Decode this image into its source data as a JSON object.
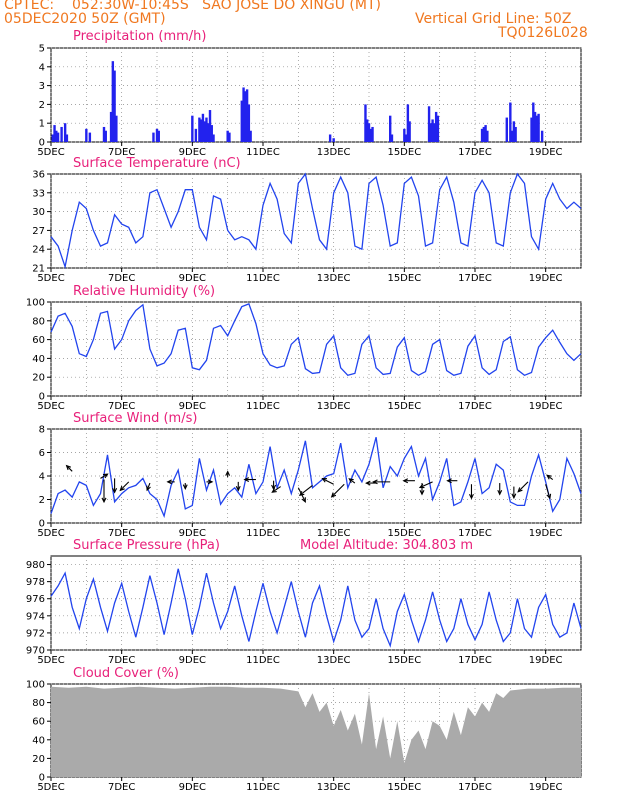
{
  "header": {
    "source": "CPTEC:",
    "location": "052:30W-10:45S   SAO JOSE DO XINGU (MT)",
    "init": "05DEC2020 50Z (GMT)",
    "gridline": "Vertical Grid Line: 50Z",
    "code": "TQ0126L028"
  },
  "x_labels": [
    "5DEC",
    "7DEC",
    "9DEC",
    "11DEC",
    "13DEC",
    "15DEC",
    "17DEC",
    "19DEC"
  ],
  "x_label_days": [
    0,
    2,
    4,
    6,
    8,
    10,
    12,
    14
  ],
  "chart_data": [
    {
      "type": "bar",
      "title": "Precipitation (mm/h)",
      "ylim": [
        0,
        5
      ],
      "yticks": [
        0,
        1,
        2,
        3,
        4,
        5
      ],
      "color": "#2222ee",
      "values": [
        [
          0.05,
          0.4
        ],
        [
          0.1,
          0.9
        ],
        [
          0.15,
          0.6
        ],
        [
          0.2,
          0.5
        ],
        [
          0.3,
          0.8
        ],
        [
          0.4,
          1.0
        ],
        [
          0.45,
          0.4
        ],
        [
          1.0,
          0.7
        ],
        [
          1.1,
          0.5
        ],
        [
          1.5,
          0.8
        ],
        [
          1.55,
          0.6
        ],
        [
          1.7,
          1.6
        ],
        [
          1.75,
          4.3
        ],
        [
          1.8,
          3.8
        ],
        [
          1.85,
          1.4
        ],
        [
          2.9,
          0.5
        ],
        [
          3.0,
          0.7
        ],
        [
          3.05,
          0.6
        ],
        [
          4.0,
          1.4
        ],
        [
          4.1,
          0.7
        ],
        [
          4.2,
          1.3
        ],
        [
          4.25,
          1.2
        ],
        [
          4.3,
          1.5
        ],
        [
          4.35,
          1.1
        ],
        [
          4.4,
          1.3
        ],
        [
          4.45,
          1.0
        ],
        [
          4.5,
          1.7
        ],
        [
          4.55,
          0.9
        ],
        [
          4.6,
          0.4
        ],
        [
          5.0,
          0.6
        ],
        [
          5.05,
          0.5
        ],
        [
          5.4,
          2.2
        ],
        [
          5.45,
          2.9
        ],
        [
          5.5,
          2.7
        ],
        [
          5.55,
          2.8
        ],
        [
          5.6,
          2.0
        ],
        [
          5.65,
          0.6
        ],
        [
          7.9,
          0.4
        ],
        [
          8.0,
          0.2
        ],
        [
          8.9,
          2.0
        ],
        [
          8.95,
          1.2
        ],
        [
          9.0,
          1.0
        ],
        [
          9.05,
          0.7
        ],
        [
          9.1,
          0.8
        ],
        [
          9.6,
          1.4
        ],
        [
          9.65,
          0.4
        ],
        [
          10.0,
          0.7
        ],
        [
          10.05,
          0.4
        ],
        [
          10.1,
          2.0
        ],
        [
          10.15,
          1.1
        ],
        [
          10.7,
          1.9
        ],
        [
          10.75,
          1.0
        ],
        [
          10.8,
          1.2
        ],
        [
          10.85,
          1.0
        ],
        [
          10.9,
          1.6
        ],
        [
          10.95,
          1.4
        ],
        [
          12.2,
          0.7
        ],
        [
          12.25,
          0.8
        ],
        [
          12.3,
          0.9
        ],
        [
          12.35,
          0.6
        ],
        [
          12.9,
          1.3
        ],
        [
          13.0,
          2.1
        ],
        [
          13.05,
          0.6
        ],
        [
          13.1,
          1.1
        ],
        [
          13.15,
          0.8
        ],
        [
          13.6,
          1.3
        ],
        [
          13.65,
          2.1
        ],
        [
          13.7,
          1.6
        ],
        [
          13.75,
          1.4
        ],
        [
          13.8,
          1.5
        ],
        [
          13.9,
          0.6
        ]
      ]
    },
    {
      "type": "line",
      "title": "Surface Temperature (nC)",
      "ylim": [
        21,
        36
      ],
      "yticks": [
        21,
        24,
        27,
        30,
        33,
        36
      ],
      "color": "#2244ee",
      "x": [
        0,
        0.2,
        0.4,
        0.6,
        0.8,
        1.0,
        1.2,
        1.4,
        1.6,
        1.8,
        2.0,
        2.2,
        2.4,
        2.6,
        2.8,
        3.0,
        3.2,
        3.4,
        3.6,
        3.8,
        4.0,
        4.2,
        4.4,
        4.6,
        4.8,
        5.0,
        5.2,
        5.4,
        5.6,
        5.8,
        6.0,
        6.2,
        6.4,
        6.6,
        6.8,
        7.0,
        7.2,
        7.4,
        7.6,
        7.8,
        8.0,
        8.2,
        8.4,
        8.6,
        8.8,
        9.0,
        9.2,
        9.4,
        9.6,
        9.8,
        10.0,
        10.2,
        10.4,
        10.6,
        10.8,
        11.0,
        11.2,
        11.4,
        11.6,
        11.8,
        12.0,
        12.2,
        12.4,
        12.6,
        12.8,
        13.0,
        13.2,
        13.4,
        13.6,
        13.8,
        14.0,
        14.2,
        14.4,
        14.6,
        14.8,
        15.0
      ],
      "y": [
        26.0,
        24.5,
        21.2,
        27.0,
        31.5,
        30.5,
        27.0,
        24.5,
        25.0,
        29.5,
        28.0,
        27.5,
        25.0,
        26.0,
        33.0,
        33.5,
        30.5,
        27.5,
        30.0,
        33.5,
        33.5,
        27.5,
        25.5,
        32.5,
        32.0,
        27.0,
        25.5,
        26.0,
        25.5,
        24.0,
        31.0,
        34.5,
        32.0,
        26.5,
        25.0,
        34.5,
        36.0,
        30.5,
        25.5,
        24.0,
        33.0,
        35.5,
        33.0,
        24.5,
        24.0,
        34.5,
        35.5,
        31.0,
        24.5,
        25.0,
        34.5,
        35.5,
        32.5,
        24.5,
        25.0,
        33.5,
        35.5,
        31.5,
        25.0,
        24.5,
        33.0,
        35.0,
        33.0,
        25.0,
        24.5,
        33.0,
        36.0,
        34.5,
        26.0,
        24.0,
        32.0,
        34.5,
        32.0,
        30.5,
        31.5,
        30.5
      ]
    },
    {
      "type": "line",
      "title": "Relative Humidity (%)",
      "ylim": [
        0,
        100
      ],
      "yticks": [
        0,
        20,
        40,
        60,
        80,
        100
      ],
      "color": "#2244ee",
      "x": [
        0,
        0.2,
        0.4,
        0.6,
        0.8,
        1.0,
        1.2,
        1.4,
        1.6,
        1.8,
        2.0,
        2.2,
        2.4,
        2.6,
        2.8,
        3.0,
        3.2,
        3.4,
        3.6,
        3.8,
        4.0,
        4.2,
        4.4,
        4.6,
        4.8,
        5.0,
        5.2,
        5.4,
        5.6,
        5.8,
        6.0,
        6.2,
        6.4,
        6.6,
        6.8,
        7.0,
        7.2,
        7.4,
        7.6,
        7.8,
        8.0,
        8.2,
        8.4,
        8.6,
        8.8,
        9.0,
        9.2,
        9.4,
        9.6,
        9.8,
        10.0,
        10.2,
        10.4,
        10.6,
        10.8,
        11.0,
        11.2,
        11.4,
        11.6,
        11.8,
        12.0,
        12.2,
        12.4,
        12.6,
        12.8,
        13.0,
        13.2,
        13.4,
        13.6,
        13.8,
        14.0,
        14.2,
        14.4,
        14.6,
        14.8,
        15.0
      ],
      "y": [
        68,
        85,
        88,
        74,
        45,
        42,
        60,
        88,
        90,
        50,
        60,
        80,
        91,
        97,
        50,
        32,
        35,
        45,
        70,
        72,
        30,
        28,
        38,
        72,
        75,
        64,
        80,
        95,
        98,
        77,
        45,
        33,
        30,
        32,
        55,
        62,
        29,
        24,
        25,
        55,
        64,
        30,
        22,
        24,
        55,
        64,
        30,
        23,
        24,
        52,
        62,
        27,
        22,
        26,
        55,
        60,
        27,
        22,
        24,
        53,
        64,
        30,
        23,
        28,
        58,
        63,
        28,
        22,
        25,
        52,
        62,
        70,
        57,
        45,
        38,
        45
      ]
    },
    {
      "type": "line",
      "title": "Surface Wind (m/s)",
      "ylim": [
        0,
        8
      ],
      "yticks": [
        0,
        2,
        4,
        6,
        8
      ],
      "color": "#2244ee",
      "x": [
        0,
        0.2,
        0.4,
        0.6,
        0.8,
        1.0,
        1.2,
        1.4,
        1.6,
        1.8,
        2.0,
        2.2,
        2.4,
        2.6,
        2.8,
        3.0,
        3.2,
        3.4,
        3.6,
        3.8,
        4.0,
        4.2,
        4.4,
        4.6,
        4.8,
        5.0,
        5.2,
        5.4,
        5.6,
        5.8,
        6.0,
        6.2,
        6.4,
        6.6,
        6.8,
        7.0,
        7.2,
        7.4,
        7.6,
        7.8,
        8.0,
        8.2,
        8.4,
        8.6,
        8.8,
        9.0,
        9.2,
        9.4,
        9.6,
        9.8,
        10.0,
        10.2,
        10.4,
        10.6,
        10.8,
        11.0,
        11.2,
        11.4,
        11.6,
        11.8,
        12.0,
        12.2,
        12.4,
        12.6,
        12.8,
        13.0,
        13.2,
        13.4,
        13.6,
        13.8,
        14.0,
        14.2,
        14.4,
        14.6,
        14.8,
        15.0
      ],
      "y": [
        0.8,
        2.5,
        2.8,
        2.2,
        3.5,
        3.2,
        1.5,
        2.5,
        5.8,
        1.8,
        2.5,
        3.0,
        3.2,
        3.8,
        2.5,
        2.0,
        0.6,
        3.2,
        4.5,
        1.2,
        1.5,
        5.5,
        2.8,
        4.5,
        1.6,
        2.5,
        3.0,
        2.2,
        5.0,
        2.5,
        3.5,
        6.5,
        3.0,
        4.5,
        2.5,
        4.5,
        7.0,
        3.0,
        3.5,
        4.0,
        4.2,
        6.8,
        3.0,
        4.5,
        3.5,
        5.0,
        7.3,
        3.0,
        4.8,
        4.0,
        5.5,
        6.5,
        4.0,
        5.5,
        2.0,
        3.5,
        5.5,
        1.5,
        1.8,
        3.5,
        5.5,
        2.5,
        3.0,
        5.0,
        4.5,
        1.8,
        1.5,
        1.5,
        4.0,
        5.8,
        3.5,
        1.0,
        2.0,
        5.5,
        4.2,
        2.5
      ],
      "vectors": [
        [
          0.6,
          4.4,
          -0.4,
          0.4
        ],
        [
          1.4,
          3.8,
          0.5,
          0.3
        ],
        [
          1.5,
          3.7,
          0.0,
          -1.6
        ],
        [
          1.8,
          3.8,
          0.0,
          -1.0
        ],
        [
          2.2,
          3.5,
          -0.6,
          -0.6
        ],
        [
          2.8,
          3.4,
          -0.2,
          -0.5
        ],
        [
          3.5,
          3.5,
          -0.5,
          0.0
        ],
        [
          3.8,
          3.4,
          0.0,
          -0.4
        ],
        [
          4.4,
          3.5,
          0.4,
          0.0
        ],
        [
          5.0,
          3.9,
          0.0,
          0.4
        ],
        [
          5.3,
          3.5,
          0.0,
          -0.6
        ],
        [
          5.8,
          3.7,
          -0.8,
          0.0
        ],
        [
          6.3,
          3.6,
          0.0,
          -0.6
        ],
        [
          6.5,
          3.1,
          -0.6,
          -0.4
        ],
        [
          7.0,
          3.0,
          0.5,
          -1.0
        ],
        [
          7.4,
          3.2,
          -0.9,
          -0.7
        ],
        [
          8.0,
          3.3,
          -0.8,
          0.4
        ],
        [
          8.3,
          3.3,
          -0.9,
          -0.9
        ],
        [
          8.6,
          3.4,
          -0.4,
          0.3
        ],
        [
          9.2,
          3.4,
          -0.7,
          0.0
        ],
        [
          9.6,
          3.5,
          -1.2,
          0.0
        ],
        [
          10.3,
          3.6,
          -0.8,
          0.0
        ],
        [
          10.5,
          3.4,
          0.0,
          -0.8
        ],
        [
          10.8,
          3.5,
          -0.9,
          -0.4
        ],
        [
          11.5,
          3.6,
          -0.7,
          0.0
        ],
        [
          11.9,
          3.3,
          0.0,
          -1.0
        ],
        [
          12.7,
          3.4,
          0.0,
          -0.8
        ],
        [
          13.1,
          3.1,
          0.0,
          -0.8
        ],
        [
          13.5,
          3.5,
          -0.7,
          -0.7
        ],
        [
          14.2,
          3.7,
          -0.4,
          0.3
        ],
        [
          14.0,
          3.3,
          0.3,
          -1.0
        ]
      ]
    },
    {
      "type": "line",
      "title": "Surface Pressure (hPa)",
      "annotation": "Model Altitude: 304.803 m",
      "ylim": [
        970,
        981
      ],
      "yticks": [
        970,
        972,
        974,
        976,
        978,
        980
      ],
      "color": "#2244ee",
      "x": [
        0,
        0.2,
        0.4,
        0.6,
        0.8,
        1.0,
        1.2,
        1.4,
        1.6,
        1.8,
        2.0,
        2.2,
        2.4,
        2.6,
        2.8,
        3.0,
        3.2,
        3.4,
        3.6,
        3.8,
        4.0,
        4.2,
        4.4,
        4.6,
        4.8,
        5.0,
        5.2,
        5.4,
        5.6,
        5.8,
        6.0,
        6.2,
        6.4,
        6.6,
        6.8,
        7.0,
        7.2,
        7.4,
        7.6,
        7.8,
        8.0,
        8.2,
        8.4,
        8.6,
        8.8,
        9.0,
        9.2,
        9.4,
        9.6,
        9.8,
        10.0,
        10.2,
        10.4,
        10.6,
        10.8,
        11.0,
        11.2,
        11.4,
        11.6,
        11.8,
        12.0,
        12.2,
        12.4,
        12.6,
        12.8,
        13.0,
        13.2,
        13.4,
        13.6,
        13.8,
        14.0,
        14.2,
        14.4,
        14.6,
        14.8,
        15.0
      ],
      "y": [
        976.3,
        977.5,
        979.0,
        975.0,
        972.5,
        976.0,
        978.3,
        975.0,
        972.2,
        975.5,
        977.8,
        974.5,
        971.5,
        975.0,
        978.7,
        975.5,
        971.8,
        975.5,
        979.5,
        976.0,
        971.8,
        975.0,
        979.0,
        975.5,
        972.5,
        974.5,
        977.5,
        974.0,
        971.0,
        974.5,
        977.8,
        974.5,
        972.0,
        975.0,
        978.0,
        974.5,
        971.5,
        975.5,
        977.5,
        974.0,
        971.0,
        973.5,
        977.5,
        973.5,
        971.5,
        972.5,
        976.0,
        972.5,
        970.5,
        974.5,
        976.5,
        973.5,
        971.0,
        973.5,
        976.8,
        973.5,
        971.0,
        972.5,
        976.0,
        973.0,
        971.2,
        973.0,
        976.8,
        973.5,
        971.0,
        972.0,
        976.0,
        972.5,
        971.5,
        975.0,
        976.5,
        973.0,
        971.5,
        972.0,
        975.5,
        972.5
      ]
    },
    {
      "type": "area",
      "title": "Cloud Cover (%)",
      "ylim": [
        0,
        100
      ],
      "yticks": [
        0,
        20,
        40,
        60,
        80,
        100
      ],
      "color": "#aaaaaa",
      "x": [
        0,
        0.5,
        1.0,
        1.5,
        2.0,
        2.5,
        3.0,
        3.5,
        4.0,
        4.5,
        5.0,
        5.5,
        6.0,
        6.5,
        7.0,
        7.2,
        7.4,
        7.6,
        7.8,
        8.0,
        8.2,
        8.4,
        8.6,
        8.8,
        9.0,
        9.2,
        9.4,
        9.6,
        9.8,
        10.0,
        10.2,
        10.4,
        10.6,
        10.8,
        11.0,
        11.2,
        11.4,
        11.6,
        11.8,
        12.0,
        12.2,
        12.4,
        12.6,
        12.8,
        13.0,
        13.5,
        14.0,
        14.5,
        15.0
      ],
      "y": [
        97,
        96,
        97,
        95,
        96,
        97,
        96,
        95,
        96,
        97,
        97,
        96,
        96,
        95,
        92,
        75,
        90,
        70,
        80,
        55,
        72,
        50,
        68,
        35,
        90,
        30,
        65,
        20,
        60,
        15,
        40,
        50,
        30,
        60,
        55,
        40,
        70,
        45,
        75,
        65,
        80,
        70,
        90,
        85,
        93,
        95,
        95,
        96,
        96
      ]
    }
  ]
}
